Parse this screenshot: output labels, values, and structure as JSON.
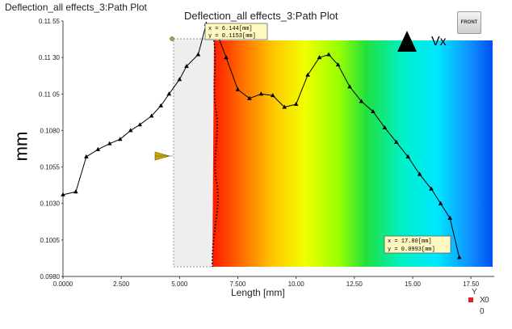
{
  "window_title": "Deflection_all effects_3:Path Plot",
  "front_button_label": "FRONT",
  "vx_label": "Vx",
  "triad": {
    "y": "Y",
    "x": "X",
    "zero_x": "0",
    "zero_bottom": "0"
  },
  "tooltips": [
    {
      "x_line": "x = 6.144[mm]",
      "y_line": "y = 0.1153[mm]"
    },
    {
      "x_line": "x = 17.00[mm]",
      "y_line": "y = 0.0993[mm]"
    }
  ],
  "colors": {
    "curve": "#000000",
    "marker": "#000000",
    "gray_panel": "#eeeeee",
    "arrow": "#000000",
    "yellow_indicator": "#c8a800"
  },
  "chart_data": {
    "type": "line",
    "title": "Deflection_all effects_3:Path Plot",
    "xlabel": "Length [mm]",
    "ylabel": "mm",
    "xlim": [
      0,
      18.5
    ],
    "ylim": [
      0.098,
      0.1155
    ],
    "xticks": [
      "0.0000",
      "2.500",
      "5.000",
      "7.500",
      "10.00",
      "12.50",
      "15.00",
      "17.50"
    ],
    "yticks": [
      "0.0980",
      "0.1005",
      "0.1030",
      "0.1055",
      "0.1080",
      "0.11 05",
      "0.11 30",
      "0.11 55"
    ],
    "series": [
      {
        "x": [
          0.0,
          0.55,
          1.0,
          1.5,
          2.0,
          2.45,
          2.9,
          3.3,
          3.8,
          4.2,
          4.55,
          5.0,
          5.3,
          5.8,
          6.144,
          6.6,
          7.0,
          7.5,
          8.0,
          8.5,
          9.0,
          9.5,
          10.0,
          10.5,
          11.0,
          11.4,
          11.8,
          12.3,
          12.8,
          13.3,
          13.8,
          14.3,
          14.8,
          15.3,
          15.8,
          16.2,
          16.6,
          17.0
        ],
        "y": [
          0.1036,
          0.1038,
          0.1062,
          0.1067,
          0.1071,
          0.1074,
          0.108,
          0.1084,
          0.109,
          0.1097,
          0.1105,
          0.1115,
          0.1124,
          0.1132,
          0.1153,
          0.1147,
          0.113,
          0.1108,
          0.1102,
          0.1105,
          0.1104,
          0.1096,
          0.1098,
          0.1118,
          0.113,
          0.1132,
          0.1125,
          0.111,
          0.11,
          0.1093,
          0.1082,
          0.1072,
          0.1062,
          0.105,
          0.104,
          0.103,
          0.102,
          0.0993
        ]
      }
    ],
    "annotations": [
      {
        "x": 6.144,
        "y": 0.1153
      },
      {
        "x": 17.0,
        "y": 0.0993
      }
    ],
    "grid": false,
    "legend": "none"
  }
}
